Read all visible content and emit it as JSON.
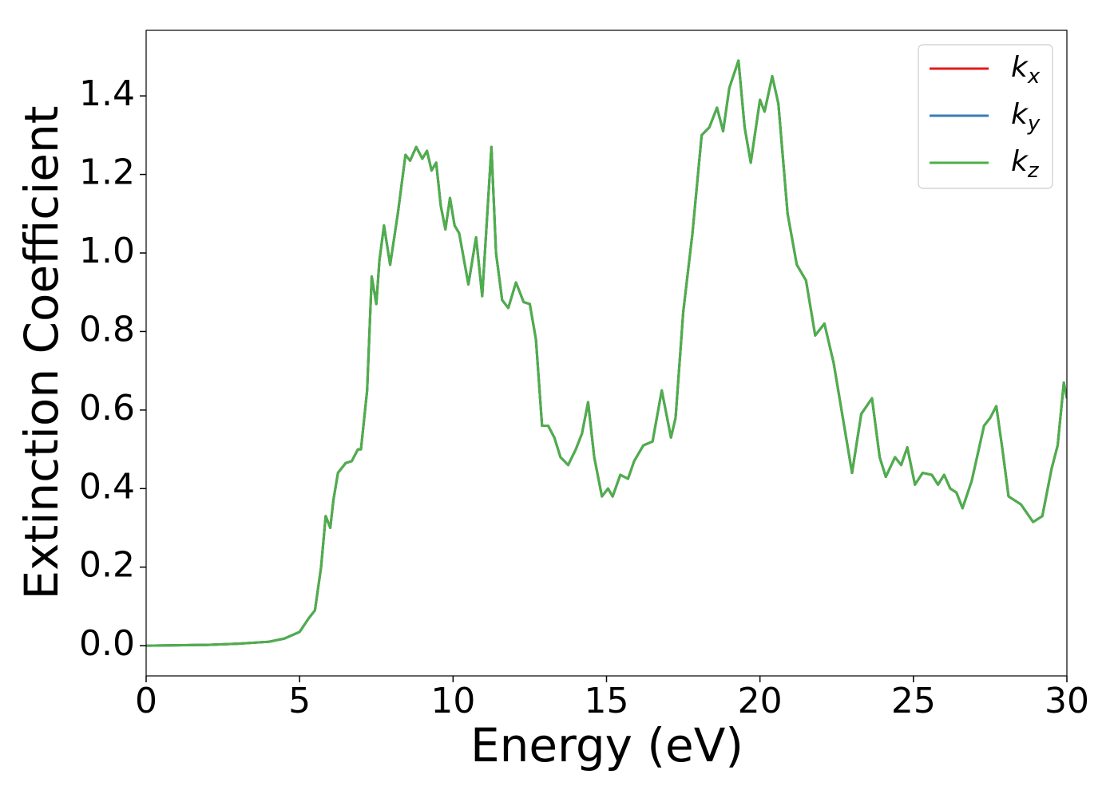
{
  "chart_data": {
    "type": "line",
    "xlabel": "Energy (eV)",
    "ylabel": "Extinction Coefficient",
    "x": [
      0,
      1,
      2,
      3,
      4,
      4.5,
      5,
      5.3,
      5.5,
      5.7,
      5.85,
      6,
      6.1,
      6.25,
      6.5,
      6.7,
      6.9,
      7,
      7.2,
      7.35,
      7.5,
      7.6,
      7.75,
      7.95,
      8.2,
      8.45,
      8.6,
      8.8,
      9,
      9.15,
      9.3,
      9.45,
      9.6,
      9.75,
      9.9,
      10.05,
      10.2,
      10.5,
      10.75,
      10.95,
      11.25,
      11.4,
      11.6,
      11.8,
      12.05,
      12.3,
      12.5,
      12.7,
      12.9,
      13.1,
      13.3,
      13.5,
      13.75,
      14,
      14.2,
      14.4,
      14.6,
      14.85,
      15.05,
      15.2,
      15.45,
      15.7,
      15.9,
      16.2,
      16.5,
      16.8,
      17.1,
      17.25,
      17.5,
      17.8,
      18.1,
      18.35,
      18.6,
      18.8,
      19,
      19.3,
      19.5,
      19.7,
      20,
      20.15,
      20.4,
      20.6,
      20.9,
      21.2,
      21.5,
      21.8,
      22.1,
      22.4,
      22.7,
      23,
      23.3,
      23.65,
      23.9,
      24.1,
      24.4,
      24.6,
      24.8,
      25.05,
      25.3,
      25.6,
      25.8,
      26,
      26.2,
      26.4,
      26.6,
      26.9,
      27.3,
      27.5,
      27.7,
      27.9,
      28.1,
      28.5,
      28.9,
      29.2,
      29.5,
      29.7,
      29.9,
      30
    ],
    "series": [
      {
        "name": "kx",
        "color": "#e41a1c",
        "values": [
          0,
          0.001,
          0.002,
          0.005,
          0.01,
          0.018,
          0.035,
          0.07,
          0.09,
          0.2,
          0.33,
          0.3,
          0.37,
          0.44,
          0.465,
          0.47,
          0.5,
          0.5,
          0.65,
          0.94,
          0.87,
          0.98,
          1.07,
          0.97,
          1.1,
          1.25,
          1.235,
          1.27,
          1.24,
          1.26,
          1.21,
          1.23,
          1.12,
          1.06,
          1.14,
          1.07,
          1.05,
          0.92,
          1.04,
          0.89,
          1.27,
          1.0,
          0.88,
          0.86,
          0.925,
          0.875,
          0.87,
          0.78,
          0.56,
          0.56,
          0.53,
          0.48,
          0.46,
          0.5,
          0.54,
          0.62,
          0.48,
          0.38,
          0.4,
          0.38,
          0.435,
          0.425,
          0.47,
          0.51,
          0.52,
          0.65,
          0.53,
          0.58,
          0.85,
          1.05,
          1.3,
          1.32,
          1.37,
          1.31,
          1.42,
          1.49,
          1.32,
          1.23,
          1.39,
          1.36,
          1.45,
          1.38,
          1.1,
          0.97,
          0.93,
          0.79,
          0.82,
          0.72,
          0.58,
          0.44,
          0.59,
          0.63,
          0.48,
          0.43,
          0.48,
          0.46,
          0.505,
          0.41,
          0.44,
          0.435,
          0.41,
          0.435,
          0.4,
          0.39,
          0.35,
          0.42,
          0.56,
          0.58,
          0.61,
          0.5,
          0.38,
          0.36,
          0.315,
          0.33,
          0.45,
          0.51,
          0.67,
          0.63
        ]
      },
      {
        "name": "ky",
        "color": "#377eb8",
        "values": [
          0,
          0.001,
          0.002,
          0.005,
          0.01,
          0.018,
          0.035,
          0.07,
          0.09,
          0.2,
          0.33,
          0.3,
          0.37,
          0.44,
          0.465,
          0.47,
          0.5,
          0.5,
          0.65,
          0.94,
          0.87,
          0.98,
          1.07,
          0.97,
          1.1,
          1.25,
          1.235,
          1.27,
          1.24,
          1.26,
          1.21,
          1.23,
          1.12,
          1.06,
          1.14,
          1.07,
          1.05,
          0.92,
          1.04,
          0.89,
          1.27,
          1.0,
          0.88,
          0.86,
          0.925,
          0.875,
          0.87,
          0.78,
          0.56,
          0.56,
          0.53,
          0.48,
          0.46,
          0.5,
          0.54,
          0.62,
          0.48,
          0.38,
          0.4,
          0.38,
          0.435,
          0.425,
          0.47,
          0.51,
          0.52,
          0.65,
          0.53,
          0.58,
          0.85,
          1.05,
          1.3,
          1.32,
          1.37,
          1.31,
          1.42,
          1.49,
          1.32,
          1.23,
          1.39,
          1.36,
          1.45,
          1.38,
          1.1,
          0.97,
          0.93,
          0.79,
          0.82,
          0.72,
          0.58,
          0.44,
          0.59,
          0.63,
          0.48,
          0.43,
          0.48,
          0.46,
          0.505,
          0.41,
          0.44,
          0.435,
          0.41,
          0.435,
          0.4,
          0.39,
          0.35,
          0.42,
          0.56,
          0.58,
          0.61,
          0.5,
          0.38,
          0.36,
          0.315,
          0.33,
          0.45,
          0.51,
          0.67,
          0.63
        ]
      },
      {
        "name": "kz",
        "color": "#4daf4a",
        "values": [
          0,
          0.001,
          0.002,
          0.005,
          0.01,
          0.018,
          0.035,
          0.07,
          0.09,
          0.2,
          0.33,
          0.3,
          0.37,
          0.44,
          0.465,
          0.47,
          0.5,
          0.5,
          0.65,
          0.94,
          0.87,
          0.98,
          1.07,
          0.97,
          1.1,
          1.25,
          1.235,
          1.27,
          1.24,
          1.26,
          1.21,
          1.23,
          1.12,
          1.06,
          1.14,
          1.07,
          1.05,
          0.92,
          1.04,
          0.89,
          1.27,
          1.0,
          0.88,
          0.86,
          0.925,
          0.875,
          0.87,
          0.78,
          0.56,
          0.56,
          0.53,
          0.48,
          0.46,
          0.5,
          0.54,
          0.62,
          0.48,
          0.38,
          0.4,
          0.38,
          0.435,
          0.425,
          0.47,
          0.51,
          0.52,
          0.65,
          0.53,
          0.58,
          0.85,
          1.05,
          1.3,
          1.32,
          1.37,
          1.31,
          1.42,
          1.49,
          1.32,
          1.23,
          1.39,
          1.36,
          1.45,
          1.38,
          1.1,
          0.97,
          0.93,
          0.79,
          0.82,
          0.72,
          0.58,
          0.44,
          0.59,
          0.63,
          0.48,
          0.43,
          0.48,
          0.46,
          0.505,
          0.41,
          0.44,
          0.435,
          0.41,
          0.435,
          0.4,
          0.39,
          0.35,
          0.42,
          0.56,
          0.58,
          0.61,
          0.5,
          0.38,
          0.36,
          0.315,
          0.33,
          0.45,
          0.51,
          0.67,
          0.63
        ]
      }
    ],
    "xlim": [
      0,
      30
    ],
    "xticks": [
      0,
      5,
      10,
      15,
      20,
      25,
      30
    ],
    "ylim": [
      -0.077,
      1.567
    ],
    "yticks": [
      {
        "value": 0,
        "label": "0.0"
      },
      0.2,
      0.4,
      0.6,
      0.8,
      {
        "value": 1,
        "label": "1.0"
      },
      1.2,
      1.4
    ],
    "grid": false,
    "legend": "upper right"
  }
}
